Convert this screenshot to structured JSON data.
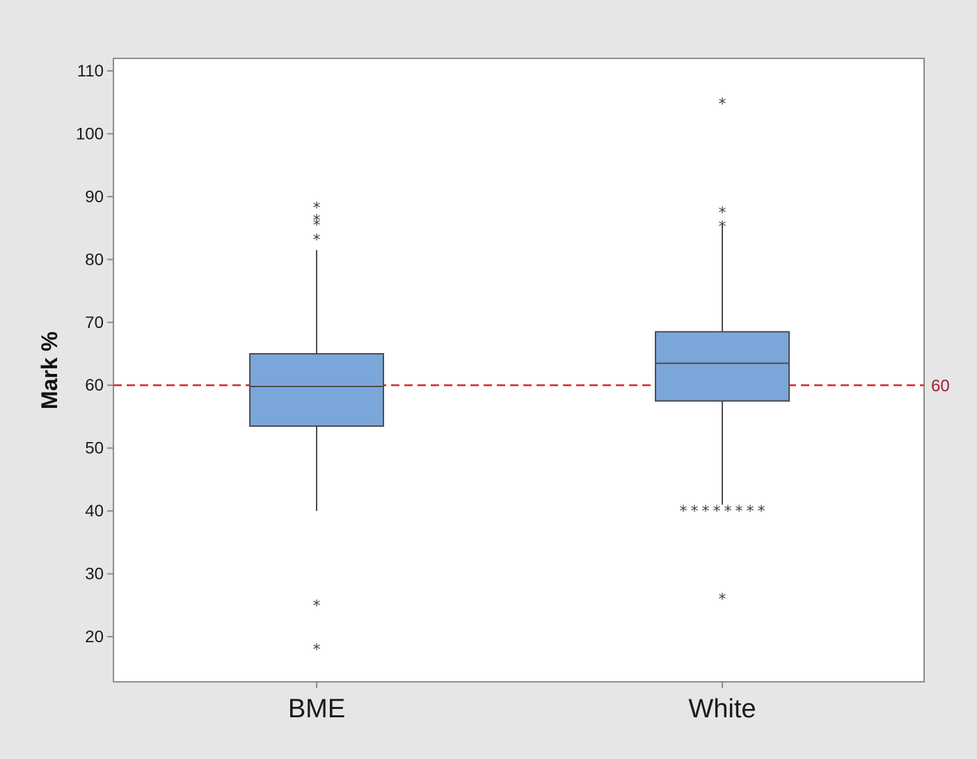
{
  "chart_data": {
    "type": "box",
    "ylabel": "Mark %",
    "xlabel": "",
    "ylim": [
      13,
      112
    ],
    "yticks": [
      20,
      30,
      40,
      50,
      60,
      70,
      80,
      90,
      100,
      110
    ],
    "grid": false,
    "categories": [
      "BME",
      "White"
    ],
    "boxes": [
      {
        "category": "BME",
        "whisker_low": 40,
        "q1": 53.5,
        "median": 59.8,
        "q3": 65,
        "whisker_high": 81.5,
        "outliers": [
          88.3,
          86.3,
          85.5,
          83.2,
          25,
          18
        ]
      },
      {
        "category": "White",
        "whisker_low": 41,
        "q1": 57.5,
        "median": 63.5,
        "q3": 68.5,
        "whisker_high": 85.5,
        "outliers": [
          104.8,
          87.5,
          85.3,
          40,
          40,
          40,
          40,
          40,
          40,
          40,
          40,
          26
        ]
      }
    ],
    "reference_line": {
      "value": 60,
      "label": "60",
      "color": "#d42a2a",
      "style": "dashed"
    },
    "colors": {
      "box_fill": "#7ba6da",
      "box_stroke": "#4d4d4d",
      "plot_bg": "#ffffff",
      "frame_bg": "#e6e6e6",
      "ref_label": "#a02030"
    }
  }
}
